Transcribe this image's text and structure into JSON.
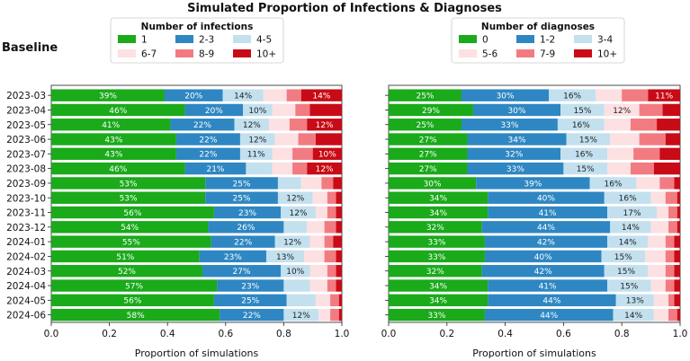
{
  "chart_data": {
    "title": "Simulated Proportion of Infections & Diagnoses",
    "scenario_label": "Baseline",
    "type": "bar",
    "orientation": "horizontal",
    "stacked": true,
    "categories": [
      "2023-03",
      "2023-04",
      "2023-05",
      "2023-06",
      "2023-07",
      "2023-08",
      "2023-09",
      "2023-10",
      "2023-11",
      "2023-12",
      "2024-01",
      "2024-02",
      "2024-03",
      "2024-04",
      "2024-05",
      "2024-06"
    ],
    "xlim": [
      0,
      1
    ],
    "xticks": [
      "0.0",
      "0.2",
      "0.4",
      "0.6",
      "0.8",
      "1.0"
    ],
    "colors": [
      "#1aaa1a",
      "#2e87c2",
      "#c3e0ef",
      "#fde0e2",
      "#f27b82",
      "#c80b16"
    ],
    "panels": [
      {
        "legend_title": "Number of infections",
        "xlabel": "Proportion of simulations",
        "series": [
          {
            "name": "1",
            "values": [
              0.39,
              0.46,
              0.41,
              0.43,
              0.43,
              0.46,
              0.53,
              0.53,
              0.56,
              0.54,
              0.55,
              0.51,
              0.52,
              0.57,
              0.56,
              0.58
            ],
            "labels": [
              "39%",
              "46%",
              "41%",
              "43%",
              "43%",
              "46%",
              "53%",
              "53%",
              "56%",
              "54%",
              "55%",
              "51%",
              "52%",
              "57%",
              "56%",
              "58%"
            ]
          },
          {
            "name": "2-3",
            "values": [
              0.2,
              0.2,
              0.22,
              0.22,
              0.22,
              0.21,
              0.25,
              0.25,
              0.23,
              0.26,
              0.22,
              0.23,
              0.27,
              0.23,
              0.25,
              0.22
            ],
            "labels": [
              "20%",
              "20%",
              "22%",
              "22%",
              "22%",
              "21%",
              "25%",
              "25%",
              "23%",
              "26%",
              "22%",
              "23%",
              "27%",
              "23%",
              "25%",
              "22%"
            ]
          },
          {
            "name": "4-5",
            "values": [
              0.14,
              0.1,
              0.12,
              0.12,
              0.11,
              0.09,
              0.08,
              0.12,
              0.12,
              0.08,
              0.12,
              0.13,
              0.1,
              0.09,
              0.1,
              0.12
            ],
            "labels": [
              "14%",
              "10%",
              "12%",
              "12%",
              "11%",
              "",
              "",
              "12%",
              "12%",
              "",
              "12%",
              "13%",
              "10%",
              "",
              "",
              "12%"
            ]
          },
          {
            "name": "6-7",
            "values": [
              0.08,
              0.08,
              0.07,
              0.08,
              0.07,
              0.07,
              0.07,
              0.05,
              0.04,
              0.06,
              0.05,
              0.07,
              0.06,
              0.06,
              0.05,
              0.04
            ],
            "labels": [
              "",
              "",
              "",
              "",
              "",
              "",
              "",
              "",
              "",
              "",
              "",
              "",
              "",
              "",
              "",
              ""
            ]
          },
          {
            "name": "8-9",
            "values": [
              0.05,
              0.05,
              0.06,
              0.06,
              0.07,
              0.05,
              0.04,
              0.03,
              0.03,
              0.04,
              0.03,
              0.04,
              0.03,
              0.03,
              0.03,
              0.03
            ],
            "labels": [
              "",
              "",
              "",
              "",
              "",
              "",
              "",
              "",
              "",
              "",
              "",
              "",
              "",
              "",
              "",
              ""
            ]
          },
          {
            "name": "10+",
            "values": [
              0.14,
              0.11,
              0.12,
              0.09,
              0.1,
              0.12,
              0.03,
              0.02,
              0.02,
              0.02,
              0.03,
              0.02,
              0.02,
              0.02,
              0.01,
              0.01
            ],
            "labels": [
              "14%",
              "",
              "12%",
              "",
              "10%",
              "12%",
              "",
              "",
              "",
              "",
              "",
              "",
              "",
              "",
              "",
              ""
            ]
          }
        ]
      },
      {
        "legend_title": "Number of diagnoses",
        "xlabel": "Proportion of simulations",
        "series": [
          {
            "name": "0",
            "values": [
              0.25,
              0.29,
              0.25,
              0.27,
              0.27,
              0.27,
              0.3,
              0.34,
              0.34,
              0.32,
              0.33,
              0.33,
              0.32,
              0.34,
              0.34,
              0.33
            ],
            "labels": [
              "25%",
              "29%",
              "25%",
              "27%",
              "27%",
              "27%",
              "30%",
              "34%",
              "34%",
              "32%",
              "33%",
              "33%",
              "32%",
              "34%",
              "34%",
              "33%"
            ]
          },
          {
            "name": "1-2",
            "values": [
              0.3,
              0.3,
              0.33,
              0.34,
              0.32,
              0.33,
              0.39,
              0.4,
              0.41,
              0.44,
              0.42,
              0.4,
              0.42,
              0.41,
              0.44,
              0.44
            ],
            "labels": [
              "30%",
              "30%",
              "33%",
              "34%",
              "32%",
              "33%",
              "39%",
              "40%",
              "41%",
              "44%",
              "42%",
              "40%",
              "42%",
              "41%",
              "44%",
              "44%"
            ]
          },
          {
            "name": "3-4",
            "values": [
              0.16,
              0.15,
              0.16,
              0.15,
              0.16,
              0.15,
              0.16,
              0.16,
              0.17,
              0.14,
              0.14,
              0.15,
              0.15,
              0.15,
              0.13,
              0.14
            ],
            "labels": [
              "16%",
              "15%",
              "16%",
              "15%",
              "16%",
              "15%",
              "16%",
              "16%",
              "17%",
              "14%",
              "14%",
              "15%",
              "15%",
              "15%",
              "13%",
              "14%"
            ]
          },
          {
            "name": "5-6",
            "values": [
              0.09,
              0.12,
              0.09,
              0.1,
              0.09,
              0.08,
              0.08,
              0.05,
              0.04,
              0.06,
              0.06,
              0.07,
              0.06,
              0.05,
              0.05,
              0.05
            ],
            "labels": [
              "",
              "12%",
              "",
              "",
              "",
              "",
              "",
              "",
              "",
              "",
              "",
              "",
              "",
              "",
              "",
              ""
            ]
          },
          {
            "name": "7-9",
            "values": [
              0.09,
              0.08,
              0.09,
              0.09,
              0.09,
              0.08,
              0.05,
              0.04,
              0.03,
              0.03,
              0.03,
              0.03,
              0.03,
              0.03,
              0.02,
              0.03
            ],
            "labels": [
              "",
              "",
              "",
              "",
              "",
              "",
              "",
              "",
              "",
              "",
              "",
              "",
              "",
              "",
              "",
              ""
            ]
          },
          {
            "name": "10+",
            "values": [
              0.11,
              0.06,
              0.08,
              0.05,
              0.07,
              0.09,
              0.02,
              0.01,
              0.01,
              0.01,
              0.02,
              0.02,
              0.02,
              0.02,
              0.02,
              0.01
            ],
            "labels": [
              "11%",
              "",
              "",
              "",
              "",
              "",
              "",
              "",
              "",
              "",
              "",
              "",
              "",
              "",
              "",
              ""
            ]
          }
        ]
      }
    ]
  }
}
